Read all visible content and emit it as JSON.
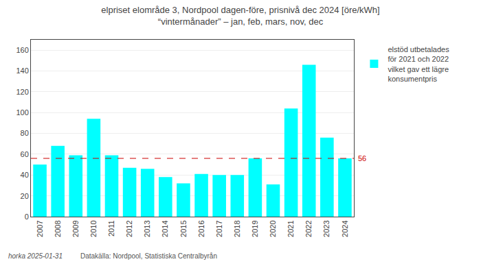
{
  "chart_data": {
    "type": "bar",
    "title": "elpriset elområde 3, Nordpool dagen-före, prisnivå dec 2024 [öre/kWh]",
    "subtitle": "“vintermånader” – jan, feb, mars, nov, dec",
    "categories": [
      "2007",
      "2008",
      "2009",
      "2010",
      "2011",
      "2012",
      "2013",
      "2014",
      "2015",
      "2016",
      "2017",
      "2018",
      "2019",
      "2020",
      "2021",
      "2022",
      "2023",
      "2024"
    ],
    "series": [
      {
        "name": "elstöd utbetalades\nför 2021 och 2022\nvilket gav ett lägre\nkonsumentpris",
        "color": "#00FFFF",
        "values": [
          50,
          68,
          59,
          94,
          59,
          47,
          46,
          38,
          32,
          41,
          40,
          40,
          56,
          31,
          104,
          146,
          76,
          56
        ]
      }
    ],
    "ylim": [
      0,
      170
    ],
    "yticks": [
      0,
      20,
      40,
      60,
      80,
      100,
      120,
      140,
      160
    ],
    "grid": true,
    "legend": "right",
    "reference_line": {
      "value": 56,
      "label": "56",
      "color": "#CC0000",
      "line_style": "dashed"
    },
    "annotations": [
      "horka 2025-01-31",
      "Datakälla: Nordpool, Statistiska Centralbyrån"
    ]
  }
}
